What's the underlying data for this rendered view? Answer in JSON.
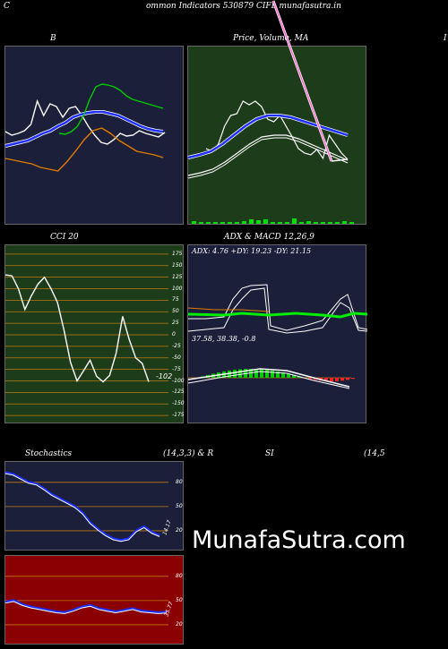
{
  "header": {
    "left_letter": "C",
    "title": "ommon  Indicators 530879 CIFL  munafasutra.in"
  },
  "panels": {
    "bollinger": {
      "title": "B",
      "bg": "#1b1f3a"
    },
    "price": {
      "title": "Price,  Volume,  MA",
      "bg": "#1d3d1a"
    },
    "right_edge": {
      "title": "I"
    },
    "cci": {
      "title": "CCI 20",
      "bg": "#1d3d1a",
      "value_label": "-102",
      "levels": [
        "175",
        "150",
        "125",
        "100",
        "75",
        "50",
        "25",
        "0",
        "-25",
        "-50",
        "-75",
        "-100",
        "-125",
        "-150",
        "-175"
      ]
    },
    "adx": {
      "title": "ADX  & MACD 12,26,9",
      "bg": "#1b1f3a",
      "adx_text": "ADX: 4.76  +DY: 19.23 -DY: 21.15",
      "macd_text": "37.58,  38.38,  -0.8"
    },
    "stoch": {
      "title_left": "Stochastics",
      "title_right": "(14,3,3) & R",
      "bg": "#1b1f3a",
      "levels": [
        "80",
        "50",
        "20"
      ],
      "value_label": "14.17"
    },
    "rsi": {
      "title_left": "SI",
      "title_right": "(14,5",
      "bg": "#8b0000",
      "levels": [
        "80",
        "50",
        "20"
      ],
      "value_label": "35.77"
    }
  },
  "brand": "MunafaSutra.com",
  "colors": {
    "white": "#ffffff",
    "blue": "#2030ff",
    "green": "#00cc00",
    "orange": "#e07b00",
    "pink": "#ff66cc"
  },
  "chart_data": [
    {
      "type": "line",
      "title": "B",
      "series": [
        {
          "color": "#ffffff",
          "values": [
            146,
            150,
            148,
            145,
            138,
            112,
            128,
            115,
            118,
            130,
            120,
            118,
            128,
            140,
            150,
            158,
            160,
            155,
            148,
            151,
            150,
            145,
            148,
            150,
            152,
            147
          ]
        },
        {
          "color": "#2030ff",
          "values": [
            162,
            160,
            158,
            156,
            152,
            148,
            145,
            140,
            136,
            130,
            127,
            125,
            124,
            124,
            126,
            128,
            132,
            136,
            140,
            143,
            145,
            146
          ]
        },
        {
          "color": "#00cc00",
          "values": [
            148,
            149,
            146,
            140,
            128,
            110,
            96,
            93,
            94,
            96,
            100,
            106,
            110,
            112,
            114,
            116,
            118,
            120
          ]
        },
        {
          "color": "#e07b00",
          "values": [
            176,
            178,
            180,
            182,
            186,
            188,
            190,
            180,
            168,
            155,
            145,
            142,
            148,
            156,
            162,
            168,
            170,
            172,
            175
          ]
        }
      ]
    },
    {
      "type": "line",
      "title": "Price,  Volume,  MA",
      "series": [
        {
          "color": "#ffffff",
          "values": [
            165,
            168,
            160,
            140,
            128,
            126,
            112,
            116,
            112,
            118,
            132,
            135,
            128,
            140,
            152,
            165,
            170,
            172,
            166,
            176,
            150,
            160,
            170,
            177
          ]
        },
        {
          "color": "#2030ff",
          "values": [
            175,
            172,
            168,
            160,
            150,
            140,
            132,
            128,
            128,
            130,
            134,
            138,
            142,
            146,
            150
          ]
        },
        {
          "color": "#ffffff",
          "values": [
            195,
            192,
            188,
            180,
            170,
            160,
            152,
            150,
            150,
            154,
            160,
            166,
            172,
            178
          ]
        },
        {
          "color": "#ff66cc",
          "values": [
            0,
            178
          ]
        }
      ],
      "volume": [
        3,
        2,
        2,
        2,
        2,
        2,
        2,
        3,
        5,
        4,
        5,
        2,
        2,
        2,
        6,
        2,
        3,
        2,
        2,
        2,
        2,
        3,
        2
      ]
    },
    {
      "type": "line",
      "title": "CCI 20",
      "ylim": [
        -175,
        175
      ],
      "value_label": "-102",
      "values": [
        130,
        128,
        100,
        55,
        85,
        110,
        125,
        100,
        70,
        10,
        -60,
        -100,
        -78,
        -55,
        -90,
        -102,
        -88,
        -40,
        40,
        -10,
        -50,
        -62,
        -102
      ]
    },
    {
      "type": "line",
      "title": "ADX  & MACD 12,26,9",
      "adx": {
        "adx": 4.76,
        "plus_di": 19.23,
        "minus_di": 21.15
      },
      "macd": {
        "macd": 37.58,
        "signal": 38.38,
        "histogram": -0.8
      }
    },
    {
      "type": "line",
      "title": "Stochastics (14,3,3)",
      "ylim": [
        0,
        100
      ],
      "levels": [
        80,
        50,
        20
      ],
      "values": [
        92,
        90,
        85,
        80,
        78,
        72,
        65,
        60,
        55,
        50,
        42,
        30,
        22,
        15,
        10,
        8,
        10,
        20,
        25,
        18,
        14
      ]
    },
    {
      "type": "line",
      "title": "RSI (14",
      "ylim": [
        0,
        100
      ],
      "levels": [
        80,
        50,
        20
      ],
      "values": [
        48,
        50,
        45,
        42,
        40,
        38,
        36,
        35,
        38,
        42,
        44,
        40,
        38,
        36,
        38,
        40,
        37,
        36,
        35,
        35.77
      ]
    }
  ]
}
